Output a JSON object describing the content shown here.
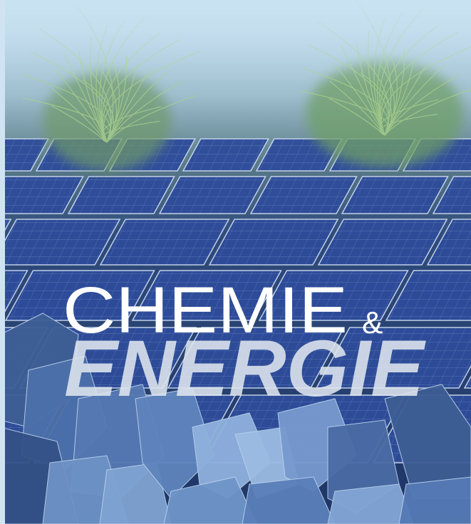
{
  "cover": {
    "title_line1": "CHEMIE",
    "ampersand": "&",
    "title_line2": "ENERGIE"
  }
}
